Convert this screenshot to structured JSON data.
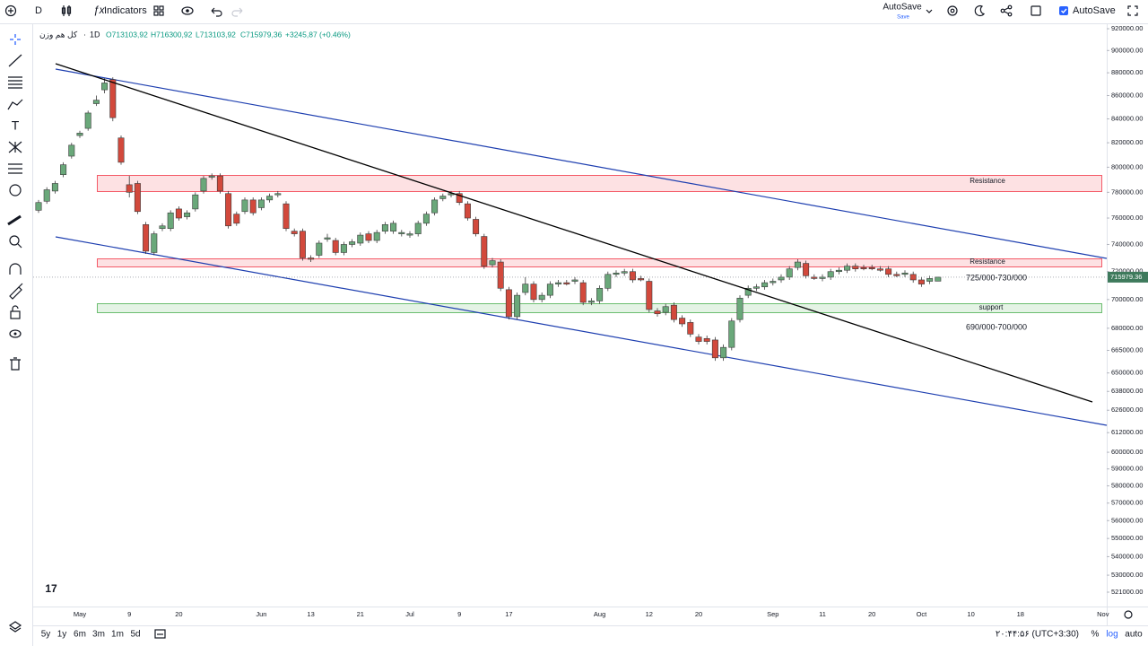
{
  "toolbar": {
    "interval": "D",
    "indicators": "Indicators",
    "autosave_label": "AutoSave",
    "autosave_status": "Save",
    "autosave_toggle": "AutoSave"
  },
  "bottom_bar": {
    "ranges": [
      "5y",
      "1y",
      "6m",
      "3m",
      "1m",
      "5d"
    ],
    "clock": "۲۰:۴۴:۵۶ (UTC+3:30)",
    "percent": "%",
    "log": "log",
    "auto": "auto"
  },
  "chart_data": {
    "type": "candlestick",
    "title": "کل هم وزن",
    "interval": "1D",
    "legend_values": [
      "O713103,92",
      "H716300,92",
      "L713103,92",
      "C715979,36",
      "+3245,87 (+0.46%)"
    ],
    "up_color": "#6aa87a",
    "down_color": "#d2493c",
    "log_scale": true,
    "ylim": [
      513500,
      924200
    ],
    "yticks": [
      {
        "value": 920000,
        "label": "920000.00"
      },
      {
        "value": 900000,
        "label": "900000.00"
      },
      {
        "value": 880000,
        "label": "880000.00"
      },
      {
        "value": 860000,
        "label": "860000.00"
      },
      {
        "value": 840000,
        "label": "840000.00"
      },
      {
        "value": 820000,
        "label": "820000.00"
      },
      {
        "value": 800000,
        "label": "800000.00"
      },
      {
        "value": 780000,
        "label": "780000.00"
      },
      {
        "value": 760000,
        "label": "760000.00"
      },
      {
        "value": 740000,
        "label": "740000.00"
      },
      {
        "value": 720000,
        "label": "720000.00"
      },
      {
        "value": 700000,
        "label": "700000.00"
      },
      {
        "value": 680000,
        "label": "680000.00"
      },
      {
        "value": 665000,
        "label": "665000.00"
      },
      {
        "value": 650000,
        "label": "650000.00"
      },
      {
        "value": 638000,
        "label": "638000.00"
      },
      {
        "value": 626000,
        "label": "626000.00"
      },
      {
        "value": 612000,
        "label": "612000.00"
      },
      {
        "value": 600000,
        "label": "600000.00"
      },
      {
        "value": 590000,
        "label": "590000.00"
      },
      {
        "value": 580000,
        "label": "580000.00"
      },
      {
        "value": 570000,
        "label": "570000.00"
      },
      {
        "value": 560000,
        "label": "560000.00"
      },
      {
        "value": 550000,
        "label": "550000.00"
      },
      {
        "value": 540000,
        "label": "540000.00"
      },
      {
        "value": 530000,
        "label": "530000.00"
      },
      {
        "value": 521000,
        "label": "521000.00"
      }
    ],
    "categories": [
      null,
      null,
      null,
      null,
      null,
      "May",
      null,
      null,
      null,
      null,
      null,
      "9",
      null,
      null,
      null,
      null,
      null,
      "20",
      null,
      null,
      null,
      null,
      null,
      null,
      null,
      null,
      null,
      "Jun",
      null,
      null,
      null,
      null,
      null,
      "13",
      null,
      null,
      null,
      null,
      null,
      "21",
      null,
      null,
      null,
      null,
      null,
      "Jul",
      null,
      null,
      null,
      null,
      null,
      "9",
      null,
      null,
      null,
      null,
      null,
      "17",
      null,
      null,
      null,
      null,
      null,
      null,
      null,
      null,
      null,
      null,
      "Aug",
      null,
      null,
      null,
      null,
      null,
      "12",
      null,
      null,
      null,
      null,
      null,
      "20",
      null,
      null,
      null,
      null,
      null,
      null,
      null,
      null,
      "Sep",
      null,
      null,
      null,
      null,
      null,
      "11",
      null,
      null,
      null,
      null,
      null,
      "20",
      null,
      null,
      null,
      null,
      null,
      "Oct",
      null,
      null,
      null,
      null,
      null,
      "10",
      null,
      null,
      null,
      null,
      null,
      "18",
      null,
      null,
      null,
      null,
      null,
      null,
      null,
      null,
      null,
      "Nov"
    ],
    "open": [
      766000,
      773000,
      781000,
      794000,
      809000,
      826000,
      832000,
      853000,
      865000,
      874000,
      824000,
      786000,
      787000,
      755000,
      734000,
      752000,
      752000,
      767000,
      761000,
      767000,
      781000,
      792000,
      793000,
      779000,
      763000,
      765000,
      774000,
      768000,
      774000,
      778000,
      771000,
      750000,
      750000,
      730000,
      732000,
      744000,
      743000,
      734000,
      740000,
      741000,
      748000,
      743000,
      750000,
      750000,
      748000,
      747000,
      748000,
      756000,
      764000,
      775000,
      778000,
      779000,
      771000,
      759000,
      746000,
      725000,
      727000,
      707000,
      688000,
      705000,
      711000,
      700000,
      703000,
      711000,
      712000,
      713000,
      712000,
      698000,
      699000,
      708000,
      718000,
      719000,
      720000,
      715000,
      713000,
      692000,
      691000,
      696000,
      687000,
      684000,
      674000,
      673000,
      672000,
      660000,
      667000,
      686000,
      703000,
      708000,
      709000,
      712000,
      714000,
      716000,
      723000,
      726000,
      716000,
      715000,
      716000,
      720000,
      721000,
      724000,
      723000,
      723000,
      722000,
      722000,
      718000,
      718000,
      718000,
      714000,
      713000,
      713103.92,
      null,
      null,
      null,
      null,
      null,
      null,
      null,
      null,
      null,
      null,
      null,
      null,
      null,
      null,
      null,
      null,
      null,
      null,
      null,
      null
    ],
    "high": [
      774000,
      784000,
      789000,
      804000,
      820000,
      830000,
      847000,
      860000,
      875000,
      876000,
      826000,
      793000,
      789000,
      757000,
      750000,
      756000,
      766000,
      769000,
      766000,
      780000,
      793000,
      795000,
      795000,
      781000,
      765000,
      776000,
      776000,
      776000,
      779000,
      781000,
      773000,
      752000,
      752000,
      732000,
      743000,
      748000,
      745000,
      742000,
      744000,
      749000,
      750000,
      751000,
      757000,
      758000,
      751000,
      750000,
      758000,
      765000,
      776000,
      779000,
      781000,
      781000,
      773000,
      761000,
      748000,
      730000,
      729000,
      709000,
      705000,
      716000,
      713000,
      705000,
      713000,
      714000,
      714000,
      716000,
      714000,
      701000,
      710000,
      720000,
      721000,
      722000,
      722000,
      717000,
      715000,
      694000,
      697000,
      698000,
      689000,
      686000,
      676000,
      675000,
      674000,
      669000,
      687000,
      703000,
      710000,
      711000,
      714000,
      715000,
      718000,
      724000,
      729000,
      728000,
      718000,
      718000,
      722000,
      723000,
      726000,
      726000,
      725000,
      725000,
      724000,
      724000,
      720000,
      721000,
      720000,
      716000,
      717000,
      716300.92,
      null,
      null,
      null,
      null,
      null,
      null,
      null,
      null,
      null,
      null,
      null,
      null,
      null,
      null,
      null,
      null,
      null,
      null,
      null,
      null
    ],
    "low": [
      764000,
      771000,
      779000,
      792000,
      807000,
      824000,
      830000,
      851000,
      862000,
      838000,
      802000,
      776000,
      763000,
      733000,
      732000,
      750000,
      750000,
      758000,
      759000,
      765000,
      779000,
      790000,
      779000,
      752000,
      754000,
      763000,
      762000,
      766000,
      772000,
      776000,
      750000,
      746000,
      728000,
      727000,
      730000,
      742000,
      732000,
      732000,
      738000,
      739000,
      741000,
      741000,
      748000,
      748000,
      746000,
      745000,
      746000,
      754000,
      762000,
      773000,
      776000,
      770000,
      758000,
      746000,
      722000,
      723000,
      706000,
      686000,
      686000,
      703000,
      698000,
      698000,
      701000,
      709000,
      710000,
      711000,
      696000,
      696000,
      697000,
      706000,
      716000,
      717000,
      712000,
      713000,
      691000,
      688000,
      689000,
      684000,
      681000,
      674000,
      669000,
      669000,
      658000,
      658000,
      665000,
      684000,
      701000,
      706000,
      707000,
      710000,
      712000,
      714000,
      721000,
      715000,
      714000,
      713000,
      714000,
      718000,
      719000,
      720000,
      721000,
      721000,
      720000,
      716000,
      716000,
      716000,
      712000,
      709000,
      711000,
      713103.92,
      null,
      null,
      null,
      null,
      null,
      null,
      null,
      null,
      null,
      null,
      null,
      null,
      null,
      null,
      null,
      null,
      null,
      null,
      null,
      null
    ],
    "close": [
      772000,
      782000,
      787000,
      802000,
      818000,
      828000,
      845000,
      856000,
      871000,
      841000,
      804000,
      780000,
      765000,
      735000,
      748000,
      754000,
      764000,
      760000,
      764000,
      778000,
      791000,
      793000,
      781000,
      754000,
      756000,
      774000,
      764000,
      774000,
      777000,
      779000,
      752000,
      748000,
      730000,
      729000,
      741000,
      745000,
      734000,
      740000,
      742000,
      747000,
      743000,
      749000,
      755000,
      756000,
      749000,
      748000,
      756000,
      763000,
      774000,
      777000,
      779000,
      772000,
      760000,
      748000,
      724000,
      728000,
      708000,
      688000,
      703000,
      711000,
      700000,
      703000,
      711000,
      712000,
      711000,
      714000,
      698000,
      699000,
      708000,
      718000,
      719000,
      720000,
      714000,
      714000,
      693000,
      690000,
      695000,
      686000,
      683000,
      676000,
      671000,
      671000,
      660000,
      667000,
      685000,
      701000,
      708000,
      709000,
      712000,
      713000,
      716000,
      722000,
      727000,
      717000,
      715000,
      716000,
      720000,
      721000,
      724000,
      722000,
      722000,
      722000,
      721000,
      718000,
      717000,
      719000,
      714000,
      711000,
      715000,
      715979.36,
      null,
      null,
      null,
      null,
      null,
      null,
      null,
      null,
      null,
      null,
      null,
      null,
      null,
      null,
      null,
      null,
      null,
      null,
      null,
      null
    ],
    "annotations": [
      "Resistance",
      "Resistance",
      "support",
      "725/000-730/000",
      "690/000-700/000"
    ]
  }
}
